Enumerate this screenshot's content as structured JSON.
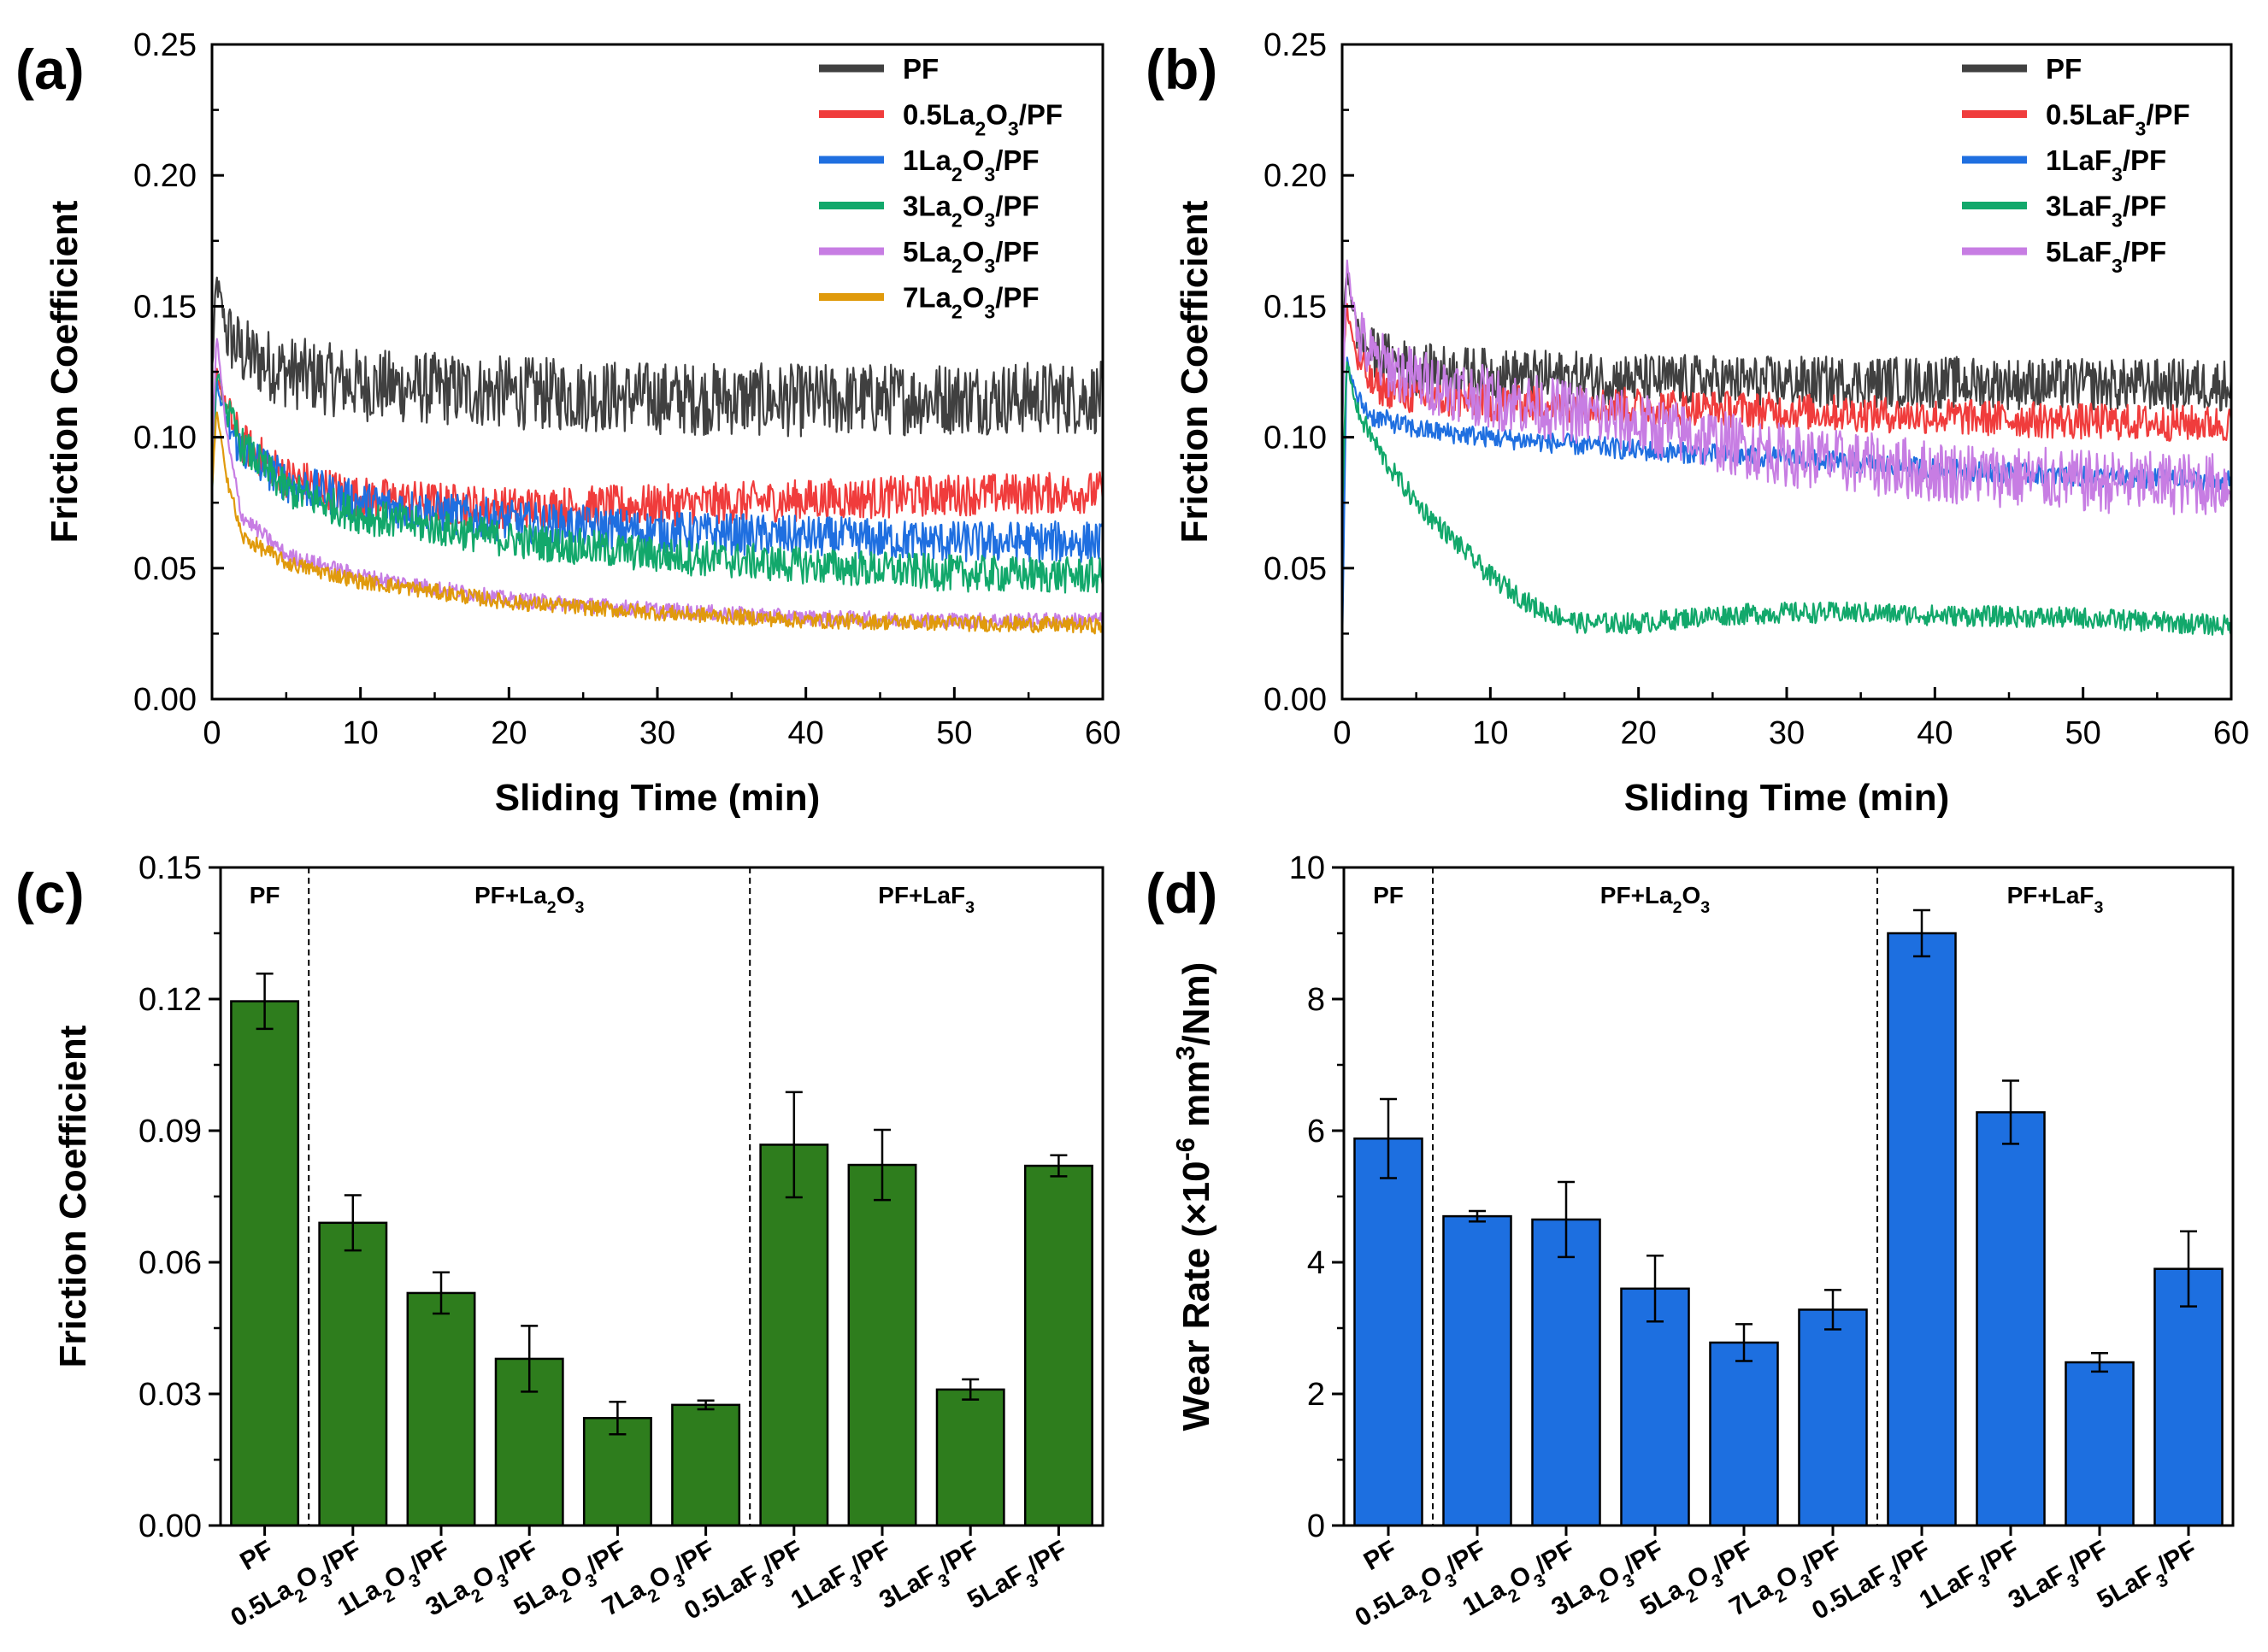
{
  "figure": {
    "panels": [
      "(a)",
      "(b)",
      "(c)",
      "(d)"
    ]
  },
  "chart_data": [
    {
      "type": "line",
      "panel": "(a)",
      "xlabel": "Sliding Time (min)",
      "ylabel": "Friction Coefficient",
      "xlim": [
        0,
        60
      ],
      "ylim": [
        0,
        0.25
      ],
      "xticks": [
        "0",
        "10",
        "20",
        "30",
        "40",
        "50",
        "60"
      ],
      "yticks": [
        "0.00",
        "0.05",
        "0.10",
        "0.15",
        "0.20",
        "0.25"
      ],
      "legend_position": "top-right",
      "series": [
        {
          "name": "PF",
          "html": "PF",
          "color": "#404040",
          "noise": 0.014,
          "x": [
            0,
            0.3,
            1,
            2,
            5,
            10,
            20,
            30,
            40,
            50,
            60
          ],
          "y": [
            0.125,
            0.16,
            0.14,
            0.132,
            0.125,
            0.12,
            0.117,
            0.115,
            0.114,
            0.115,
            0.115
          ]
        },
        {
          "name": "0.5La2O3/PF",
          "html": "0.5La<tspan baseline-shift=\"sub\" font-size=\"70%\">2</tspan>O<tspan baseline-shift=\"sub\" font-size=\"70%\">3</tspan>/PF",
          "color": "#f03c3c",
          "noise": 0.008,
          "x": [
            0,
            0.3,
            1,
            2,
            5,
            10,
            20,
            30,
            40,
            50,
            60
          ],
          "y": [
            0.1,
            0.125,
            0.11,
            0.098,
            0.085,
            0.077,
            0.073,
            0.074,
            0.076,
            0.078,
            0.079
          ]
        },
        {
          "name": "1La2O3/PF",
          "html": "1La<tspan baseline-shift=\"sub\" font-size=\"70%\">2</tspan>O<tspan baseline-shift=\"sub\" font-size=\"70%\">3</tspan>/PF",
          "color": "#1f6fe0",
          "noise": 0.008,
          "x": [
            0,
            0.3,
            1,
            2,
            5,
            10,
            20,
            30,
            40,
            50,
            60
          ],
          "y": [
            0.09,
            0.12,
            0.105,
            0.095,
            0.083,
            0.075,
            0.068,
            0.064,
            0.062,
            0.06,
            0.06
          ]
        },
        {
          "name": "3La2O3/PF",
          "html": "3La<tspan baseline-shift=\"sub\" font-size=\"70%\">2</tspan>O<tspan baseline-shift=\"sub\" font-size=\"70%\">3</tspan>/PF",
          "color": "#12a86b",
          "noise": 0.007,
          "x": [
            0,
            0.3,
            1,
            2,
            5,
            10,
            20,
            30,
            40,
            50,
            60
          ],
          "y": [
            0.08,
            0.125,
            0.11,
            0.097,
            0.08,
            0.07,
            0.061,
            0.055,
            0.051,
            0.048,
            0.047
          ]
        },
        {
          "name": "5La2O3/PF",
          "html": "5La<tspan baseline-shift=\"sub\" font-size=\"70%\">2</tspan>O<tspan baseline-shift=\"sub\" font-size=\"70%\">3</tspan>/PF",
          "color": "#c77de3",
          "noise": 0.003,
          "x": [
            0,
            0.3,
            1,
            2,
            5,
            10,
            20,
            30,
            40,
            50,
            60
          ],
          "y": [
            0.09,
            0.14,
            0.1,
            0.07,
            0.055,
            0.047,
            0.038,
            0.034,
            0.031,
            0.03,
            0.03
          ]
        },
        {
          "name": "7La2O3/PF",
          "html": "7La<tspan baseline-shift=\"sub\" font-size=\"70%\">2</tspan>O<tspan baseline-shift=\"sub\" font-size=\"70%\">3</tspan>/PF",
          "color": "#e09a0c",
          "noise": 0.003,
          "x": [
            0,
            0.3,
            1,
            2,
            5,
            10,
            20,
            30,
            40,
            50,
            60
          ],
          "y": [
            0.08,
            0.11,
            0.085,
            0.062,
            0.052,
            0.045,
            0.037,
            0.033,
            0.03,
            0.029,
            0.028
          ]
        }
      ]
    },
    {
      "type": "line",
      "panel": "(b)",
      "xlabel": "Sliding Time (min)",
      "ylabel": "Friction Coefficient",
      "xlim": [
        0,
        60
      ],
      "ylim": [
        0,
        0.25
      ],
      "xticks": [
        "0",
        "10",
        "20",
        "30",
        "40",
        "50",
        "60"
      ],
      "yticks": [
        "0.00",
        "0.05",
        "0.10",
        "0.15",
        "0.20",
        "0.25"
      ],
      "legend_position": "top-right",
      "series": [
        {
          "name": "PF",
          "html": "PF",
          "color": "#404040",
          "noise": 0.01,
          "x": [
            0,
            0.3,
            1,
            2,
            5,
            10,
            20,
            30,
            40,
            50,
            60
          ],
          "y": [
            0.13,
            0.165,
            0.14,
            0.132,
            0.126,
            0.124,
            0.122,
            0.121,
            0.121,
            0.12,
            0.12
          ]
        },
        {
          "name": "0.5LaF3/PF",
          "html": "0.5LaF<tspan baseline-shift=\"sub\" font-size=\"70%\">3</tspan>/PF",
          "color": "#f03c3c",
          "noise": 0.007,
          "x": [
            0,
            0.3,
            1,
            2,
            5,
            10,
            20,
            30,
            40,
            50,
            60
          ],
          "y": [
            0.12,
            0.15,
            0.13,
            0.12,
            0.115,
            0.113,
            0.112,
            0.11,
            0.108,
            0.106,
            0.105
          ]
        },
        {
          "name": "1LaF3/PF",
          "html": "1LaF<tspan baseline-shift=\"sub\" font-size=\"70%\">3</tspan>/PF",
          "color": "#1f6fe0",
          "noise": 0.004,
          "x": [
            0,
            0.3,
            1,
            2,
            5,
            10,
            20,
            30,
            40,
            50,
            60
          ],
          "y": [
            0.02,
            0.13,
            0.115,
            0.108,
            0.103,
            0.1,
            0.095,
            0.092,
            0.088,
            0.085,
            0.083
          ]
        },
        {
          "name": "3LaF3/PF",
          "html": "3LaF<tspan baseline-shift=\"sub\" font-size=\"70%\">3</tspan>/PF",
          "color": "#12a86b",
          "noise": 0.004,
          "x": [
            0,
            0.3,
            1,
            3,
            5,
            8,
            10,
            13,
            16,
            20,
            25,
            30,
            35,
            40,
            50,
            60
          ],
          "y": [
            0.07,
            0.13,
            0.11,
            0.09,
            0.075,
            0.058,
            0.047,
            0.035,
            0.029,
            0.029,
            0.032,
            0.033,
            0.033,
            0.032,
            0.031,
            0.028
          ]
        },
        {
          "name": "5LaF3/PF",
          "html": "5LaF<tspan baseline-shift=\"sub\" font-size=\"70%\">3</tspan>/PF",
          "color": "#c77de3",
          "noise": 0.012,
          "x": [
            0,
            0.3,
            1,
            2,
            5,
            10,
            20,
            30,
            40,
            50,
            60
          ],
          "y": [
            0.1,
            0.17,
            0.14,
            0.13,
            0.122,
            0.115,
            0.105,
            0.093,
            0.087,
            0.083,
            0.082
          ]
        }
      ]
    },
    {
      "type": "bar",
      "panel": "(c)",
      "ylabel": "Friction Coefficient",
      "ylim": [
        0,
        0.15
      ],
      "yticks": [
        "0.00",
        "0.03",
        "0.06",
        "0.09",
        "0.12",
        "0.15"
      ],
      "bar_color": "#2e7d1d",
      "categories": [
        "PF",
        "0.5La2O3/PF",
        "1La2O3/PF",
        "3La2O3/PF",
        "5La2O3/PF",
        "7La2O3/PF",
        "0.5LaF3/PF",
        "1LaF3/PF",
        "3LaF3/PF",
        "5LaF3/PF"
      ],
      "category_html": [
        "PF",
        "0.5La<tspan baseline-shift=\"sub\" font-size=\"70%\">2</tspan>O<tspan baseline-shift=\"sub\" font-size=\"70%\">3</tspan>/PF",
        "1La<tspan baseline-shift=\"sub\" font-size=\"70%\">2</tspan>O<tspan baseline-shift=\"sub\" font-size=\"70%\">3</tspan>/PF",
        "3La<tspan baseline-shift=\"sub\" font-size=\"70%\">2</tspan>O<tspan baseline-shift=\"sub\" font-size=\"70%\">3</tspan>/PF",
        "5La<tspan baseline-shift=\"sub\" font-size=\"70%\">2</tspan>O<tspan baseline-shift=\"sub\" font-size=\"70%\">3</tspan>/PF",
        "7La<tspan baseline-shift=\"sub\" font-size=\"70%\">2</tspan>O<tspan baseline-shift=\"sub\" font-size=\"70%\">3</tspan>/PF",
        "0.5LaF<tspan baseline-shift=\"sub\" font-size=\"70%\">3</tspan>/PF",
        "1LaF<tspan baseline-shift=\"sub\" font-size=\"70%\">3</tspan>/PF",
        "3LaF<tspan baseline-shift=\"sub\" font-size=\"70%\">3</tspan>/PF",
        "5LaF<tspan baseline-shift=\"sub\" font-size=\"70%\">3</tspan>/PF"
      ],
      "values": [
        0.1195,
        0.069,
        0.053,
        0.038,
        0.0245,
        0.0275,
        0.0868,
        0.0822,
        0.031,
        0.082
      ],
      "errors": [
        0.0063,
        0.0063,
        0.0047,
        0.0075,
        0.0037,
        0.001,
        0.012,
        0.008,
        0.0023,
        0.0024
      ],
      "groups": [
        {
          "label": "PF",
          "html": "PF",
          "range": [
            0,
            0
          ]
        },
        {
          "label": "PF+La2O3",
          "html": "PF+La<tspan baseline-shift=\"sub\" font-size=\"70%\">2</tspan>O<tspan baseline-shift=\"sub\" font-size=\"70%\">3</tspan>",
          "range": [
            1,
            5
          ]
        },
        {
          "label": "PF+LaF3",
          "html": "PF+LaF<tspan baseline-shift=\"sub\" font-size=\"70%\">3</tspan>",
          "range": [
            6,
            9
          ]
        }
      ]
    },
    {
      "type": "bar",
      "panel": "(d)",
      "ylabel": "Wear Rate (×10-6 mm3/Nm)",
      "ylabel_html": "Wear Rate (×10<tspan baseline-shift=\"super\" font-size=\"70%\">-6</tspan> mm<tspan baseline-shift=\"super\" font-size=\"70%\">3</tspan>/Nm)",
      "ylim": [
        0,
        10
      ],
      "yticks": [
        "0",
        "2",
        "4",
        "6",
        "8",
        "10"
      ],
      "bar_color": "#1d6fe0",
      "categories": [
        "PF",
        "0.5La2O3/PF",
        "1La2O3/PF",
        "3La2O3/PF",
        "5La2O3/PF",
        "7La2O3/PF",
        "0.5LaF3/PF",
        "1LaF3/PF",
        "3LaF3/PF",
        "5LaF3/PF"
      ],
      "category_html": [
        "PF",
        "0.5La<tspan baseline-shift=\"sub\" font-size=\"70%\">2</tspan>O<tspan baseline-shift=\"sub\" font-size=\"70%\">3</tspan>/PF",
        "1La<tspan baseline-shift=\"sub\" font-size=\"70%\">2</tspan>O<tspan baseline-shift=\"sub\" font-size=\"70%\">3</tspan>/PF",
        "3La<tspan baseline-shift=\"sub\" font-size=\"70%\">2</tspan>O<tspan baseline-shift=\"sub\" font-size=\"70%\">3</tspan>/PF",
        "5La<tspan baseline-shift=\"sub\" font-size=\"70%\">2</tspan>O<tspan baseline-shift=\"sub\" font-size=\"70%\">3</tspan>/PF",
        "7La<tspan baseline-shift=\"sub\" font-size=\"70%\">2</tspan>O<tspan baseline-shift=\"sub\" font-size=\"70%\">3</tspan>/PF",
        "0.5LaF<tspan baseline-shift=\"sub\" font-size=\"70%\">3</tspan>/PF",
        "1LaF<tspan baseline-shift=\"sub\" font-size=\"70%\">3</tspan>/PF",
        "3LaF<tspan baseline-shift=\"sub\" font-size=\"70%\">3</tspan>/PF",
        "5LaF<tspan baseline-shift=\"sub\" font-size=\"70%\">3</tspan>/PF"
      ],
      "values": [
        5.88,
        4.7,
        4.65,
        3.6,
        2.78,
        3.28,
        9.0,
        6.28,
        2.48,
        3.9
      ],
      "errors": [
        0.6,
        0.08,
        0.57,
        0.5,
        0.28,
        0.3,
        0.35,
        0.48,
        0.14,
        0.57
      ],
      "groups": [
        {
          "label": "PF",
          "html": "PF",
          "range": [
            0,
            0
          ]
        },
        {
          "label": "PF+La2O3",
          "html": "PF+La<tspan baseline-shift=\"sub\" font-size=\"70%\">2</tspan>O<tspan baseline-shift=\"sub\" font-size=\"70%\">3</tspan>",
          "range": [
            1,
            5
          ]
        },
        {
          "label": "PF+LaF3",
          "html": "PF+LaF<tspan baseline-shift=\"sub\" font-size=\"70%\">3</tspan>",
          "range": [
            6,
            9
          ]
        }
      ]
    }
  ]
}
